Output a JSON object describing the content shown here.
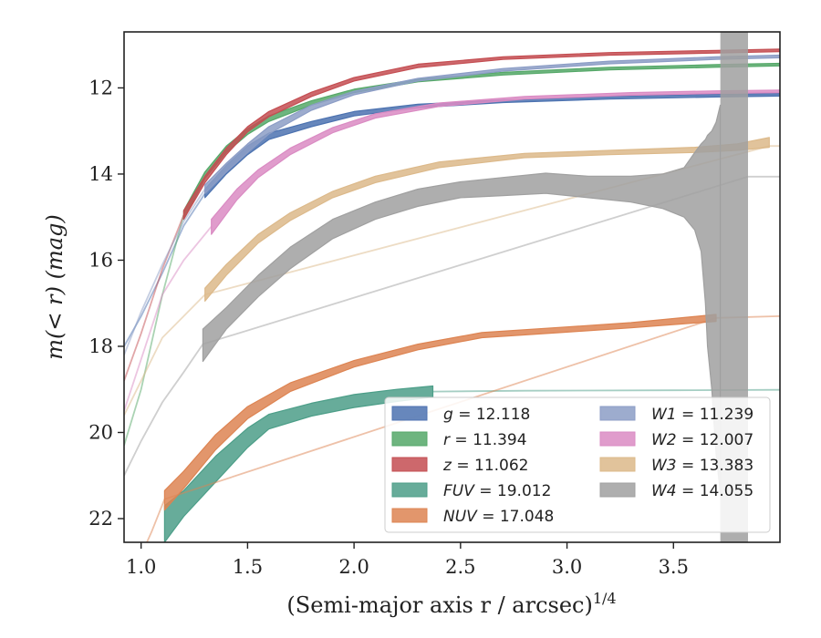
{
  "chart_data": {
    "type": "line",
    "xlabel": "(Semi-major axis r / arcsec)",
    "xlabel_exponent": "1/4",
    "ylabel": "m(< r) (mag)",
    "xlim": [
      0.92,
      4.0
    ],
    "ylim": [
      22.55,
      10.7
    ],
    "y_inverted": true,
    "grid": false,
    "legend_position": "bottom-right",
    "x_ticks": [
      1.0,
      1.5,
      2.0,
      2.5,
      3.0,
      3.5
    ],
    "x_tick_labels": [
      "1.0",
      "1.5",
      "2.0",
      "2.5",
      "3.0",
      "3.5"
    ],
    "y_ticks": [
      12,
      14,
      16,
      18,
      20,
      22
    ],
    "y_tick_labels": [
      "12",
      "14",
      "16",
      "18",
      "20",
      "22"
    ],
    "series": [
      {
        "name": "g = 12.118",
        "label_var": "g",
        "label_value": "12.118",
        "color": "#4c72b0",
        "band": [
          [
            1.3,
            14.35,
            14.55
          ],
          [
            1.4,
            13.8,
            14.0
          ],
          [
            1.5,
            13.35,
            13.55
          ],
          [
            1.6,
            13.05,
            13.2
          ],
          [
            1.8,
            12.78,
            12.9
          ],
          [
            2.0,
            12.55,
            12.65
          ],
          [
            2.3,
            12.38,
            12.46
          ],
          [
            2.7,
            12.28,
            12.34
          ],
          [
            3.2,
            12.2,
            12.26
          ],
          [
            3.7,
            12.15,
            12.21
          ],
          [
            4.0,
            12.13,
            12.19
          ]
        ],
        "extrapolation": [
          [
            0.92,
            18.0
          ],
          [
            1.0,
            17.3
          ],
          [
            1.1,
            16.3
          ],
          [
            1.2,
            15.2
          ],
          [
            1.3,
            14.45
          ]
        ]
      },
      {
        "name": "r = 11.394",
        "label_var": "r",
        "label_value": "11.394",
        "color": "#55a868",
        "band": [
          [
            1.2,
            14.85,
            15.05
          ],
          [
            1.3,
            13.95,
            14.1
          ],
          [
            1.4,
            13.35,
            13.5
          ],
          [
            1.5,
            12.95,
            13.08
          ],
          [
            1.6,
            12.65,
            12.78
          ],
          [
            1.8,
            12.3,
            12.4
          ],
          [
            2.0,
            12.03,
            12.11
          ],
          [
            2.3,
            11.8,
            11.86
          ],
          [
            2.7,
            11.64,
            11.7
          ],
          [
            3.2,
            11.52,
            11.58
          ],
          [
            3.7,
            11.46,
            11.52
          ],
          [
            4.0,
            11.43,
            11.49
          ]
        ],
        "extrapolation": [
          [
            0.92,
            20.3
          ],
          [
            1.0,
            19.0
          ],
          [
            1.1,
            16.8
          ],
          [
            1.2,
            14.95
          ]
        ]
      },
      {
        "name": "z = 11.062",
        "label_var": "z",
        "label_value": "11.062",
        "color": "#c44e52",
        "band": [
          [
            1.2,
            14.85,
            15.05
          ],
          [
            1.3,
            14.05,
            14.2
          ],
          [
            1.4,
            13.4,
            13.55
          ],
          [
            1.5,
            12.9,
            13.02
          ],
          [
            1.6,
            12.55,
            12.67
          ],
          [
            1.8,
            12.1,
            12.2
          ],
          [
            2.0,
            11.76,
            11.84
          ],
          [
            2.3,
            11.45,
            11.53
          ],
          [
            2.7,
            11.28,
            11.34
          ],
          [
            3.2,
            11.18,
            11.24
          ],
          [
            3.7,
            11.13,
            11.19
          ],
          [
            4.0,
            11.1,
            11.16
          ]
        ],
        "extrapolation": [
          [
            0.92,
            18.8
          ],
          [
            1.0,
            17.7
          ],
          [
            1.1,
            16.2
          ],
          [
            1.2,
            14.95
          ]
        ]
      },
      {
        "name": "FUV = 19.012",
        "label_var": "FUV",
        "label_value": "19.012",
        "color": "#4c9e88",
        "band": [
          [
            1.11,
            21.7,
            22.55
          ],
          [
            1.2,
            21.35,
            21.95
          ],
          [
            1.35,
            20.55,
            21.15
          ],
          [
            1.5,
            19.9,
            20.35
          ],
          [
            1.6,
            19.58,
            19.92
          ],
          [
            1.8,
            19.32,
            19.62
          ],
          [
            2.0,
            19.12,
            19.42
          ],
          [
            2.2,
            19.0,
            19.28
          ],
          [
            2.37,
            18.92,
            19.18
          ]
        ],
        "extrapolation": [
          [
            2.37,
            19.05
          ],
          [
            2.8,
            19.03
          ],
          [
            3.5,
            19.02
          ],
          [
            4.0,
            19.01
          ]
        ]
      },
      {
        "name": "NUV = 17.048",
        "label_var": "NUV",
        "label_value": "17.048",
        "color": "#dd8452",
        "band": [
          [
            1.11,
            21.35,
            21.8
          ],
          [
            1.2,
            20.9,
            21.3
          ],
          [
            1.35,
            20.05,
            20.4
          ],
          [
            1.5,
            19.4,
            19.68
          ],
          [
            1.7,
            18.85,
            19.05
          ],
          [
            2.0,
            18.33,
            18.48
          ],
          [
            2.3,
            17.95,
            18.08
          ],
          [
            2.6,
            17.68,
            17.8
          ],
          [
            3.0,
            17.55,
            17.67
          ],
          [
            3.3,
            17.45,
            17.57
          ],
          [
            3.7,
            17.26,
            17.42
          ]
        ],
        "extrapolation": [
          [
            0.95,
            23.4
          ],
          [
            1.05,
            22.3
          ],
          [
            1.11,
            21.55
          ],
          [
            3.7,
            17.34
          ],
          [
            4.0,
            17.3
          ]
        ]
      },
      {
        "name": "W1 = 11.239",
        "label_var": "W1",
        "label_value": "11.239",
        "color": "#8c9dc6",
        "band": [
          [
            1.3,
            14.25,
            14.45
          ],
          [
            1.4,
            13.75,
            13.95
          ],
          [
            1.5,
            13.3,
            13.5
          ],
          [
            1.6,
            12.9,
            13.07
          ],
          [
            1.8,
            12.4,
            12.52
          ],
          [
            2.0,
            12.08,
            12.16
          ],
          [
            2.3,
            11.78,
            11.84
          ],
          [
            2.7,
            11.55,
            11.61
          ],
          [
            3.2,
            11.38,
            11.44
          ],
          [
            3.7,
            11.28,
            11.34
          ],
          [
            4.0,
            11.24,
            11.3
          ]
        ],
        "extrapolation": [
          [
            0.92,
            18.2
          ],
          [
            1.0,
            17.2
          ],
          [
            1.1,
            16.1
          ],
          [
            1.2,
            15.1
          ],
          [
            1.3,
            14.35
          ]
        ]
      },
      {
        "name": "W2 = 12.007",
        "label_var": "W2",
        "label_value": "12.007",
        "color": "#da8bc3",
        "band": [
          [
            1.33,
            15.05,
            15.4
          ],
          [
            1.45,
            14.35,
            14.6
          ],
          [
            1.55,
            13.9,
            14.08
          ],
          [
            1.7,
            13.4,
            13.55
          ],
          [
            1.9,
            12.92,
            13.04
          ],
          [
            2.1,
            12.6,
            12.7
          ],
          [
            2.4,
            12.35,
            12.43
          ],
          [
            2.8,
            12.2,
            12.26
          ],
          [
            3.3,
            12.11,
            12.17
          ],
          [
            3.7,
            12.07,
            12.13
          ],
          [
            4.0,
            12.05,
            12.11
          ]
        ],
        "extrapolation": [
          [
            0.92,
            19.5
          ],
          [
            1.0,
            18.3
          ],
          [
            1.1,
            16.8
          ],
          [
            1.2,
            16.0
          ],
          [
            1.33,
            15.22
          ]
        ]
      },
      {
        "name": "W3 = 13.383",
        "label_var": "W3",
        "label_value": "13.383",
        "color": "#dcb98a",
        "band": [
          [
            1.3,
            16.65,
            16.95
          ],
          [
            1.4,
            16.1,
            16.35
          ],
          [
            1.55,
            15.4,
            15.6
          ],
          [
            1.7,
            14.9,
            15.08
          ],
          [
            1.9,
            14.4,
            14.55
          ],
          [
            2.1,
            14.05,
            14.2
          ],
          [
            2.4,
            13.72,
            13.85
          ],
          [
            2.8,
            13.52,
            13.62
          ],
          [
            3.2,
            13.45,
            13.55
          ],
          [
            3.6,
            13.38,
            13.5
          ],
          [
            3.8,
            13.3,
            13.45
          ],
          [
            3.95,
            13.15,
            13.38
          ]
        ],
        "extrapolation": [
          [
            0.92,
            19.6
          ],
          [
            1.0,
            18.8
          ],
          [
            1.1,
            17.8
          ],
          [
            1.2,
            17.3
          ],
          [
            1.3,
            16.8
          ],
          [
            3.95,
            13.35
          ],
          [
            4.0,
            13.35
          ]
        ]
      },
      {
        "name": "W4 = 14.055",
        "label_var": "W4",
        "label_value": "14.055",
        "color": "#a0a0a0",
        "band": [
          [
            1.29,
            17.6,
            18.35
          ],
          [
            1.4,
            17.1,
            17.6
          ],
          [
            1.55,
            16.35,
            16.85
          ],
          [
            1.7,
            15.7,
            16.2
          ],
          [
            1.9,
            15.05,
            15.5
          ],
          [
            2.1,
            14.65,
            15.05
          ],
          [
            2.3,
            14.35,
            14.75
          ],
          [
            2.5,
            14.18,
            14.55
          ],
          [
            2.7,
            14.08,
            14.5
          ],
          [
            2.9,
            13.98,
            14.45
          ],
          [
            3.1,
            14.05,
            14.55
          ],
          [
            3.3,
            14.05,
            14.65
          ],
          [
            3.45,
            14.0,
            14.8
          ],
          [
            3.55,
            13.85,
            15.0
          ],
          [
            3.6,
            13.5,
            15.3
          ],
          [
            3.63,
            13.3,
            15.8
          ],
          [
            3.65,
            13.2,
            17.0
          ],
          [
            3.66,
            13.1,
            18.0
          ],
          [
            3.68,
            13.0,
            19.0
          ],
          [
            3.7,
            12.8,
            20.5
          ],
          [
            3.72,
            12.4,
            21.4
          ]
        ],
        "extrapolation": [
          [
            0.92,
            21.0
          ],
          [
            1.0,
            20.2
          ],
          [
            1.1,
            19.3
          ],
          [
            1.2,
            18.6
          ],
          [
            1.29,
            17.95
          ],
          [
            3.85,
            14.06
          ],
          [
            4.0,
            14.06
          ]
        ],
        "vertical_band": [
          3.72,
          3.85
        ]
      }
    ]
  }
}
